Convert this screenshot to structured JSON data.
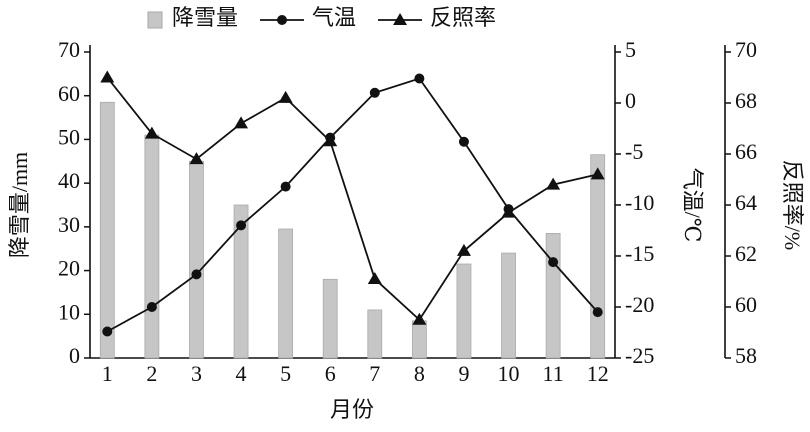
{
  "chart_data": {
    "type": "combo",
    "categories": [
      "1",
      "2",
      "3",
      "4",
      "5",
      "6",
      "7",
      "8",
      "9",
      "10",
      "11",
      "12"
    ],
    "xlabel": "月份",
    "ylabel": "降雪量/mm",
    "y2label": "气温/℃",
    "y3label": "反照率/%",
    "ylim": [
      0,
      70
    ],
    "yticks": [
      0,
      10,
      20,
      30,
      40,
      50,
      60,
      70
    ],
    "y2lim": [
      -25,
      5
    ],
    "y2ticks": [
      -25,
      -20,
      -15,
      -10,
      -5,
      0,
      5
    ],
    "y3lim": [
      58,
      70
    ],
    "y3ticks": [
      58,
      60,
      62,
      64,
      66,
      68,
      70
    ],
    "legend": "top",
    "series": [
      {
        "name": "降雪量",
        "type": "bar",
        "axis": "y",
        "color": "#c6c6c6",
        "values": [
          58.5,
          51,
          45,
          35,
          29.5,
          18,
          11,
          8.5,
          21.5,
          24,
          28.5,
          46.5
        ]
      },
      {
        "name": "气温",
        "type": "line",
        "marker": "circle",
        "axis": "y2",
        "color": "#111111",
        "values": [
          -22.4,
          -20,
          -16.8,
          -12,
          -8.2,
          -3.4,
          1,
          2.4,
          -3.8,
          -10.4,
          -15.6,
          -20.5
        ]
      },
      {
        "name": "反照率",
        "type": "line",
        "marker": "triangle",
        "axis": "y3",
        "color": "#111111",
        "values": [
          69,
          66.8,
          65.8,
          67.2,
          68.2,
          66.5,
          61.1,
          59.5,
          62.2,
          63.7,
          64.8,
          65.2
        ]
      }
    ]
  }
}
